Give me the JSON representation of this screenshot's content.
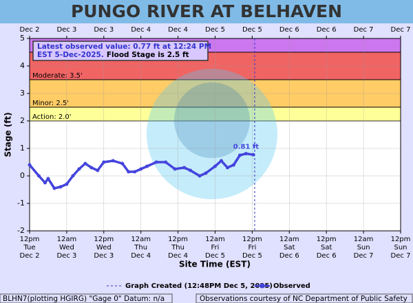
{
  "chart_data": {
    "type": "line",
    "title": "PUNGO RIVER AT BELHAVEN",
    "x_label": "Site Time (EST)",
    "y_label": "Stage (ft)",
    "xlim": [
      "Dec 2 12:00",
      "Dec 7 12:00"
    ],
    "ylim": [
      -2,
      5
    ],
    "yticks": [
      -2,
      -1,
      0,
      1,
      2,
      3,
      4,
      5
    ],
    "grid": true,
    "xticks": [
      {
        "value": "Dec 2 12:00",
        "label": [
          "12pm",
          "Tue",
          "Dec 2"
        ]
      },
      {
        "value": "Dec 3 00:00",
        "label": [
          "12am",
          "Wed",
          "Dec 3"
        ]
      },
      {
        "value": "Dec 3 12:00",
        "label": [
          "12pm",
          "Wed",
          "Dec 3"
        ]
      },
      {
        "value": "Dec 4 00:00",
        "label": [
          "12am",
          "Thu",
          "Dec 4"
        ]
      },
      {
        "value": "Dec 4 12:00",
        "label": [
          "12pm",
          "Thu",
          "Dec 4"
        ]
      },
      {
        "value": "Dec 5 00:00",
        "label": [
          "12am",
          "Fri",
          "Dec 5"
        ]
      },
      {
        "value": "Dec 5 12:00",
        "label": [
          "12pm",
          "Fri",
          "Dec 5"
        ]
      },
      {
        "value": "Dec 6 00:00",
        "label": [
          "12am",
          "Sat",
          "Dec 6"
        ]
      },
      {
        "value": "Dec 6 12:00",
        "label": [
          "12pm",
          "Sat",
          "Dec 6"
        ]
      },
      {
        "value": "Dec 7 00:00",
        "label": [
          "12am",
          "Sun",
          "Dec 7"
        ]
      },
      {
        "value": "Dec 7 12:00",
        "label": [
          "12pm",
          "Sun",
          "Dec 7"
        ]
      }
    ],
    "x2ticks": [
      {
        "value": "Dec 2 12:00",
        "label": "Dec 2"
      },
      {
        "value": "Dec 3 00:00",
        "label": "Dec 3"
      },
      {
        "value": "Dec 3 12:00",
        "label": "Dec 3"
      },
      {
        "value": "Dec 4 00:00",
        "label": "Dec 4"
      },
      {
        "value": "Dec 4 12:00",
        "label": "Dec 4"
      },
      {
        "value": "Dec 5 00:00",
        "label": "Dec 5"
      },
      {
        "value": "Dec 5 12:00",
        "label": "Dec 5"
      },
      {
        "value": "Dec 6 00:00",
        "label": "Dec 6"
      },
      {
        "value": "Dec 6 12:00",
        "label": "Dec 6"
      },
      {
        "value": "Dec 7 00:00",
        "label": "Dec 7"
      },
      {
        "value": "Dec 7 12:00",
        "label": "Dec 7"
      }
    ],
    "flood_stages": [
      {
        "value": 2.0,
        "label": "Action: 2.0'",
        "color": "#ffff99"
      },
      {
        "value": 2.5,
        "label": "Minor: 2.5'",
        "color": "#ffcc66"
      },
      {
        "value": 3.5,
        "label": "Moderate: 3.5'",
        "color": "#f06464"
      },
      {
        "value": 4.5,
        "color": "#cc77ee"
      }
    ],
    "created": {
      "x": "Dec 5 12:48",
      "label": "Graph Created (12:48PM Dec 5, 2025)",
      "color": "#3333cc"
    },
    "latest_note": [
      "Latest observed value: 0.77 ft at 12:24 PM",
      "EST 5-Dec-2025.",
      "Flood Stage is 2.5 ft"
    ],
    "peak_label": "0.81 ft",
    "series": [
      {
        "name": "Observed",
        "color": "#4444dd",
        "x": [
          "Dec 2 12:00",
          "Dec 2 15:00",
          "Dec 2 17:00",
          "Dec 2 18:00",
          "Dec 2 20:00",
          "Dec 2 22:00",
          "Dec 3 00:00",
          "Dec 3 02:00",
          "Dec 3 04:00",
          "Dec 3 06:00",
          "Dec 3 08:00",
          "Dec 3 10:00",
          "Dec 3 12:00",
          "Dec 3 15:00",
          "Dec 3 18:00",
          "Dec 3 20:00",
          "Dec 3 22:00",
          "Dec 4 00:00",
          "Dec 4 02:00",
          "Dec 4 05:00",
          "Dec 4 08:00",
          "Dec 4 11:00",
          "Dec 4 14:00",
          "Dec 4 16:00",
          "Dec 4 19:00",
          "Dec 4 21:00",
          "Dec 5 00:00",
          "Dec 5 02:00",
          "Dec 5 04:00",
          "Dec 5 06:00",
          "Dec 5 08:00",
          "Dec 5 10:00",
          "Dec 5 12:24"
        ],
        "values": [
          0.4,
          0.0,
          -0.25,
          -0.1,
          -0.45,
          -0.4,
          -0.3,
          0.0,
          0.25,
          0.45,
          0.3,
          0.2,
          0.5,
          0.55,
          0.45,
          0.15,
          0.15,
          0.25,
          0.35,
          0.5,
          0.5,
          0.25,
          0.3,
          0.2,
          0.0,
          0.1,
          0.35,
          0.55,
          0.3,
          0.4,
          0.75,
          0.81,
          0.77
        ]
      }
    ],
    "footer_left": "BLHN7(plotting HGIRG) \"Gage 0\" Datum: n/a",
    "footer_right": "Observations courtesy of NC Department of Public Safety"
  }
}
